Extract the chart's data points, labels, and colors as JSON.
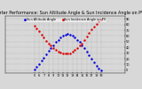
{
  "title": "Solar PV/Inverter Performance: Sun Altitude Angle & Sun Incidence Angle on PV Panels",
  "ylim": [
    -5,
    95
  ],
  "xlim": [
    -1,
    24
  ],
  "series": [
    {
      "label": "Sun Altitude Angle",
      "color": "#0000dd",
      "marker": ".",
      "markersize": 1.5,
      "x": [
        5.0,
        5.5,
        6.0,
        6.5,
        7.0,
        7.5,
        8.0,
        8.5,
        9.0,
        9.5,
        10.0,
        10.5,
        11.0,
        11.5,
        12.0,
        12.5,
        13.0,
        13.5,
        14.0,
        14.5,
        15.0,
        15.5,
        16.0,
        16.5,
        17.0,
        17.5,
        18.0,
        18.5,
        19.0
      ],
      "y": [
        2,
        6,
        11,
        17,
        22,
        28,
        34,
        39,
        44,
        49,
        53,
        57,
        60,
        62,
        63,
        62,
        60,
        57,
        53,
        49,
        44,
        38,
        32,
        26,
        20,
        14,
        8,
        3,
        0
      ]
    },
    {
      "label": "Sun Incidence Angle on PV",
      "color": "#dd0000",
      "marker": ".",
      "markersize": 1.5,
      "x": [
        5.0,
        5.5,
        6.0,
        6.5,
        7.0,
        7.5,
        8.0,
        8.5,
        9.0,
        9.5,
        10.0,
        10.5,
        11.0,
        11.5,
        12.0,
        12.5,
        13.0,
        13.5,
        14.0,
        14.5,
        15.0,
        15.5,
        16.0,
        16.5,
        17.0,
        17.5,
        18.0,
        18.5,
        19.0
      ],
      "y": [
        78,
        73,
        68,
        62,
        57,
        52,
        47,
        43,
        39,
        36,
        33,
        31,
        30,
        29,
        29,
        30,
        32,
        35,
        39,
        43,
        47,
        53,
        59,
        65,
        71,
        76,
        81,
        85,
        88
      ]
    }
  ],
  "xticks": [
    5,
    6,
    7,
    8,
    9,
    10,
    11,
    12,
    13,
    14,
    15,
    16,
    17,
    18,
    19
  ],
  "yticks": [
    0,
    10,
    20,
    30,
    40,
    50,
    60,
    70,
    80,
    90
  ],
  "background_color": "#d8d8d8",
  "plot_bg_color": "#d8d8d8",
  "title_fontsize": 3.5,
  "tick_fontsize": 2.5,
  "legend_fontsize": 2.5
}
